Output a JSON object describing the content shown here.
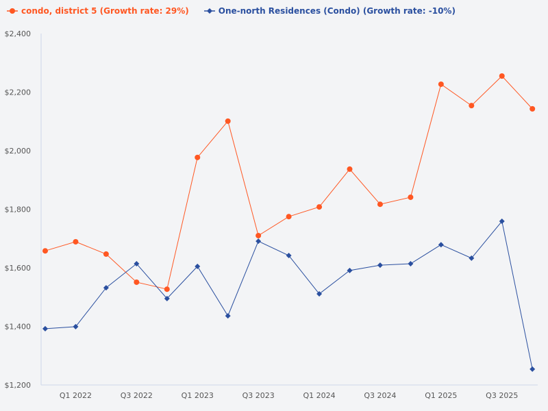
{
  "chart_data": {
    "type": "line",
    "title": "",
    "xlabel": "",
    "ylabel": "",
    "categories": [
      "Q4 2021",
      "Q1 2022",
      "Q2 2022",
      "Q3 2022",
      "Q4 2022",
      "Q1 2023",
      "Q2 2023",
      "Q3 2023",
      "Q4 2023",
      "Q1 2024",
      "Q2 2024",
      "Q3 2024",
      "Q4 2024",
      "Q1 2025",
      "Q2 2025",
      "Q3 2025",
      "Q4 2025"
    ],
    "x_tick_labels": [
      "Q1 2022",
      "Q3 2022",
      "Q1 2023",
      "Q3 2023",
      "Q1 2024",
      "Q3 2024",
      "Q1 2025",
      "Q3 2025"
    ],
    "ylim": [
      1200,
      2400
    ],
    "y_ticks": [
      1200,
      1400,
      1600,
      1800,
      2000,
      2200,
      2400
    ],
    "y_tick_labels": [
      "$1,200",
      "$1,400",
      "$1,600",
      "$1,800",
      "$2,000",
      "$2,200",
      "$2,400"
    ],
    "grid": false,
    "legend_position": "top-left",
    "series": [
      {
        "name": "condo, district 5 (Growth rate: 29%)",
        "color": "#ff5722",
        "marker": "circle",
        "values": [
          1658,
          1689,
          1647,
          1551,
          1527,
          1977,
          2101,
          1710,
          1775,
          1808,
          1937,
          1817,
          1841,
          2227,
          2154,
          2255,
          2143
        ]
      },
      {
        "name": "One-north Residences (Condo) (Growth rate: -10%)",
        "color": "#2a4f9f",
        "marker": "diamond",
        "values": [
          1392,
          1399,
          1532,
          1614,
          1495,
          1605,
          1436,
          1691,
          1642,
          1511,
          1591,
          1609,
          1614,
          1679,
          1633,
          1759,
          1254
        ]
      }
    ]
  }
}
